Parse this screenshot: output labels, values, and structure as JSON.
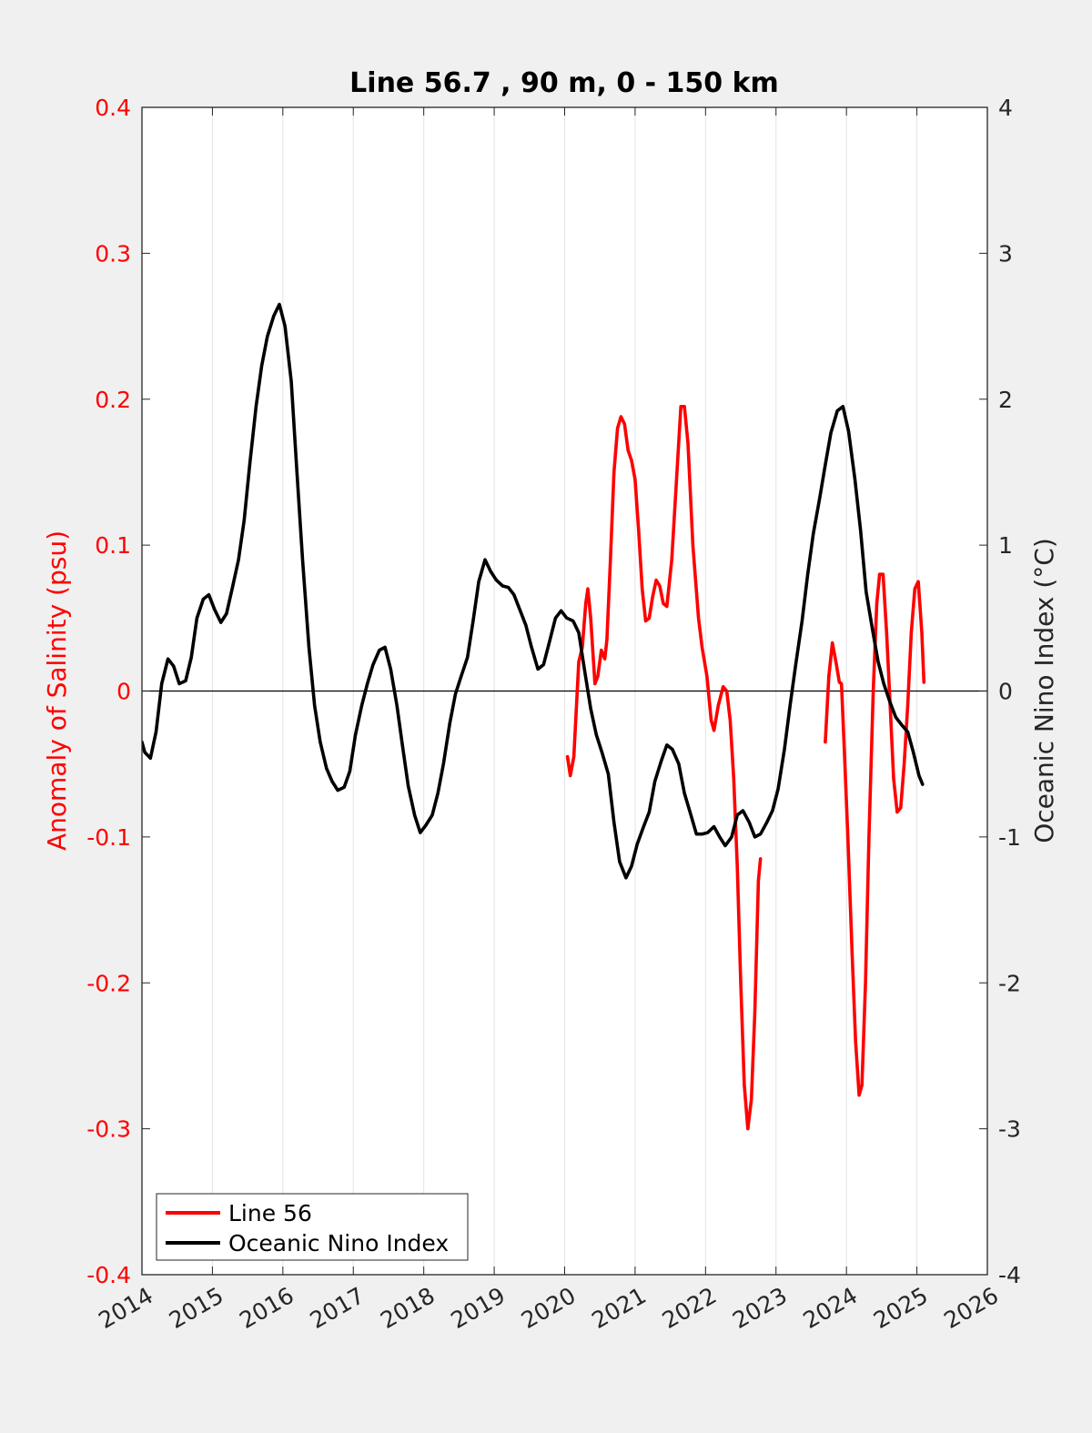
{
  "chart_data": {
    "type": "line",
    "title": "Line 56.7 , 90 m, 0 - 150 km",
    "ylabel_left": "Anomaly of Salinity (psu)",
    "ylabel_right": "Oceanic Nino Index (°C)",
    "xlim": [
      2014,
      2026
    ],
    "ylim_left": [
      -0.4,
      0.4
    ],
    "ylim_right": [
      -4,
      4
    ],
    "x_ticks": [
      "2014",
      "2015",
      "2016",
      "2017",
      "2018",
      "2019",
      "2020",
      "2021",
      "2022",
      "2023",
      "2024",
      "2025",
      "2026"
    ],
    "y_ticks_left": [
      "-0.4",
      "-0.3",
      "-0.2",
      "-0.1",
      "0",
      "0.1",
      "0.2",
      "0.3",
      "0.4"
    ],
    "y_ticks_right": [
      "-4",
      "-3",
      "-2",
      "-1",
      "0",
      "1",
      "2",
      "3",
      "4"
    ],
    "grid": "vertical",
    "zero_line": true,
    "legend_position": "bottom-left",
    "colors": {
      "salinity": "#ff0000",
      "oni": "#000000"
    },
    "series": [
      {
        "name": "Line 56",
        "axis": "left",
        "segments": [
          [
            [
              2020.04,
              -0.045
            ],
            [
              2020.08,
              -0.058
            ],
            [
              2020.13,
              -0.045
            ],
            [
              2020.2,
              0.02
            ],
            [
              2020.25,
              0.03
            ],
            [
              2020.3,
              0.06
            ],
            [
              2020.33,
              0.07
            ],
            [
              2020.37,
              0.05
            ],
            [
              2020.43,
              0.005
            ],
            [
              2020.47,
              0.01
            ],
            [
              2020.52,
              0.028
            ],
            [
              2020.57,
              0.022
            ],
            [
              2020.6,
              0.035
            ],
            [
              2020.65,
              0.09
            ],
            [
              2020.7,
              0.15
            ],
            [
              2020.75,
              0.18
            ],
            [
              2020.8,
              0.188
            ],
            [
              2020.85,
              0.183
            ],
            [
              2020.9,
              0.165
            ],
            [
              2020.95,
              0.158
            ],
            [
              2021.0,
              0.145
            ],
            [
              2021.05,
              0.11
            ],
            [
              2021.1,
              0.07
            ],
            [
              2021.15,
              0.048
            ],
            [
              2021.2,
              0.05
            ],
            [
              2021.25,
              0.065
            ],
            [
              2021.3,
              0.076
            ],
            [
              2021.35,
              0.072
            ],
            [
              2021.4,
              0.06
            ],
            [
              2021.45,
              0.058
            ],
            [
              2021.52,
              0.09
            ],
            [
              2021.6,
              0.155
            ],
            [
              2021.65,
              0.195
            ],
            [
              2021.7,
              0.195
            ],
            [
              2021.75,
              0.17
            ],
            [
              2021.82,
              0.1
            ],
            [
              2021.9,
              0.05
            ],
            [
              2021.95,
              0.03
            ],
            [
              2022.02,
              0.01
            ],
            [
              2022.08,
              -0.02
            ],
            [
              2022.12,
              -0.027
            ],
            [
              2022.18,
              -0.01
            ],
            [
              2022.25,
              0.003
            ],
            [
              2022.3,
              0.0
            ],
            [
              2022.35,
              -0.02
            ],
            [
              2022.4,
              -0.06
            ],
            [
              2022.45,
              -0.12
            ],
            [
              2022.5,
              -0.2
            ],
            [
              2022.55,
              -0.27
            ],
            [
              2022.6,
              -0.3
            ],
            [
              2022.65,
              -0.28
            ],
            [
              2022.7,
              -0.22
            ],
            [
              2022.75,
              -0.13
            ],
            [
              2022.78,
              -0.115
            ]
          ],
          [
            [
              2023.7,
              -0.035
            ],
            [
              2023.75,
              0.01
            ],
            [
              2023.8,
              0.033
            ],
            [
              2023.85,
              0.02
            ],
            [
              2023.9,
              0.006
            ],
            [
              2023.93,
              0.005
            ],
            [
              2023.97,
              -0.04
            ],
            [
              2024.02,
              -0.1
            ],
            [
              2024.08,
              -0.18
            ],
            [
              2024.13,
              -0.24
            ],
            [
              2024.18,
              -0.277
            ],
            [
              2024.22,
              -0.27
            ],
            [
              2024.27,
              -0.2
            ],
            [
              2024.32,
              -0.1
            ],
            [
              2024.38,
              0.0
            ],
            [
              2024.43,
              0.06
            ],
            [
              2024.47,
              0.08
            ],
            [
              2024.52,
              0.08
            ],
            [
              2024.57,
              0.04
            ],
            [
              2024.62,
              -0.01
            ],
            [
              2024.67,
              -0.06
            ],
            [
              2024.72,
              -0.083
            ],
            [
              2024.77,
              -0.08
            ],
            [
              2024.82,
              -0.05
            ],
            [
              2024.87,
              -0.01
            ],
            [
              2024.92,
              0.04
            ],
            [
              2024.97,
              0.07
            ],
            [
              2025.02,
              0.075
            ],
            [
              2025.07,
              0.04
            ],
            [
              2025.1,
              0.006
            ]
          ]
        ]
      },
      {
        "name": "Oceanic Nino Index",
        "axis": "right",
        "segments": [
          [
            [
              2014.0,
              -0.35
            ],
            [
              2014.04,
              -0.42
            ],
            [
              2014.12,
              -0.46
            ],
            [
              2014.2,
              -0.28
            ],
            [
              2014.28,
              0.05
            ],
            [
              2014.37,
              0.22
            ],
            [
              2014.45,
              0.17
            ],
            [
              2014.53,
              0.05
            ],
            [
              2014.62,
              0.07
            ],
            [
              2014.7,
              0.23
            ],
            [
              2014.78,
              0.5
            ],
            [
              2014.87,
              0.63
            ],
            [
              2014.95,
              0.66
            ],
            [
              2015.03,
              0.56
            ],
            [
              2015.12,
              0.47
            ],
            [
              2015.2,
              0.53
            ],
            [
              2015.28,
              0.7
            ],
            [
              2015.37,
              0.9
            ],
            [
              2015.45,
              1.17
            ],
            [
              2015.53,
              1.55
            ],
            [
              2015.62,
              1.95
            ],
            [
              2015.7,
              2.23
            ],
            [
              2015.78,
              2.43
            ],
            [
              2015.87,
              2.57
            ],
            [
              2015.95,
              2.65
            ],
            [
              2016.03,
              2.5
            ],
            [
              2016.12,
              2.12
            ],
            [
              2016.2,
              1.5
            ],
            [
              2016.28,
              0.9
            ],
            [
              2016.37,
              0.3
            ],
            [
              2016.45,
              -0.1
            ],
            [
              2016.53,
              -0.35
            ],
            [
              2016.62,
              -0.53
            ],
            [
              2016.7,
              -0.62
            ],
            [
              2016.78,
              -0.68
            ],
            [
              2016.87,
              -0.66
            ],
            [
              2016.95,
              -0.55
            ],
            [
              2017.03,
              -0.3
            ],
            [
              2017.12,
              -0.1
            ],
            [
              2017.2,
              0.05
            ],
            [
              2017.28,
              0.18
            ],
            [
              2017.37,
              0.28
            ],
            [
              2017.45,
              0.3
            ],
            [
              2017.53,
              0.15
            ],
            [
              2017.62,
              -0.1
            ],
            [
              2017.7,
              -0.38
            ],
            [
              2017.78,
              -0.65
            ],
            [
              2017.87,
              -0.85
            ],
            [
              2017.95,
              -0.97
            ],
            [
              2018.03,
              -0.92
            ],
            [
              2018.12,
              -0.85
            ],
            [
              2018.2,
              -0.7
            ],
            [
              2018.28,
              -0.5
            ],
            [
              2018.37,
              -0.22
            ],
            [
              2018.45,
              -0.02
            ],
            [
              2018.53,
              0.1
            ],
            [
              2018.62,
              0.23
            ],
            [
              2018.7,
              0.48
            ],
            [
              2018.78,
              0.75
            ],
            [
              2018.87,
              0.9
            ],
            [
              2018.95,
              0.82
            ],
            [
              2019.03,
              0.76
            ],
            [
              2019.12,
              0.72
            ],
            [
              2019.2,
              0.71
            ],
            [
              2019.28,
              0.66
            ],
            [
              2019.37,
              0.55
            ],
            [
              2019.45,
              0.45
            ],
            [
              2019.53,
              0.3
            ],
            [
              2019.62,
              0.15
            ],
            [
              2019.7,
              0.18
            ],
            [
              2019.78,
              0.33
            ],
            [
              2019.87,
              0.5
            ],
            [
              2019.95,
              0.55
            ],
            [
              2020.03,
              0.5
            ],
            [
              2020.12,
              0.48
            ],
            [
              2020.2,
              0.4
            ],
            [
              2020.28,
              0.15
            ],
            [
              2020.37,
              -0.12
            ],
            [
              2020.45,
              -0.3
            ],
            [
              2020.53,
              -0.42
            ],
            [
              2020.62,
              -0.57
            ],
            [
              2020.7,
              -0.9
            ],
            [
              2020.78,
              -1.17
            ],
            [
              2020.87,
              -1.28
            ],
            [
              2020.95,
              -1.2
            ],
            [
              2021.03,
              -1.05
            ],
            [
              2021.12,
              -0.93
            ],
            [
              2021.2,
              -0.83
            ],
            [
              2021.28,
              -0.62
            ],
            [
              2021.37,
              -0.48
            ],
            [
              2021.45,
              -0.37
            ],
            [
              2021.53,
              -0.4
            ],
            [
              2021.62,
              -0.5
            ],
            [
              2021.7,
              -0.7
            ],
            [
              2021.78,
              -0.83
            ],
            [
              2021.87,
              -0.98
            ],
            [
              2021.95,
              -0.98
            ],
            [
              2022.03,
              -0.97
            ],
            [
              2022.12,
              -0.93
            ],
            [
              2022.2,
              -1.0
            ],
            [
              2022.28,
              -1.06
            ],
            [
              2022.37,
              -1.0
            ],
            [
              2022.45,
              -0.85
            ],
            [
              2022.53,
              -0.82
            ],
            [
              2022.62,
              -0.9
            ],
            [
              2022.7,
              -1.0
            ],
            [
              2022.78,
              -0.98
            ],
            [
              2022.87,
              -0.9
            ],
            [
              2022.95,
              -0.82
            ],
            [
              2023.03,
              -0.67
            ],
            [
              2023.12,
              -0.4
            ],
            [
              2023.2,
              -0.1
            ],
            [
              2023.28,
              0.18
            ],
            [
              2023.37,
              0.48
            ],
            [
              2023.45,
              0.8
            ],
            [
              2023.53,
              1.08
            ],
            [
              2023.62,
              1.32
            ],
            [
              2023.7,
              1.55
            ],
            [
              2023.78,
              1.77
            ],
            [
              2023.87,
              1.92
            ],
            [
              2023.95,
              1.95
            ],
            [
              2024.03,
              1.78
            ],
            [
              2024.12,
              1.45
            ],
            [
              2024.2,
              1.1
            ],
            [
              2024.28,
              0.68
            ],
            [
              2024.37,
              0.42
            ],
            [
              2024.45,
              0.2
            ],
            [
              2024.53,
              0.05
            ],
            [
              2024.62,
              -0.08
            ],
            [
              2024.7,
              -0.18
            ],
            [
              2024.78,
              -0.23
            ],
            [
              2024.87,
              -0.28
            ],
            [
              2024.95,
              -0.42
            ],
            [
              2025.03,
              -0.58
            ],
            [
              2025.08,
              -0.64
            ]
          ]
        ]
      }
    ]
  }
}
